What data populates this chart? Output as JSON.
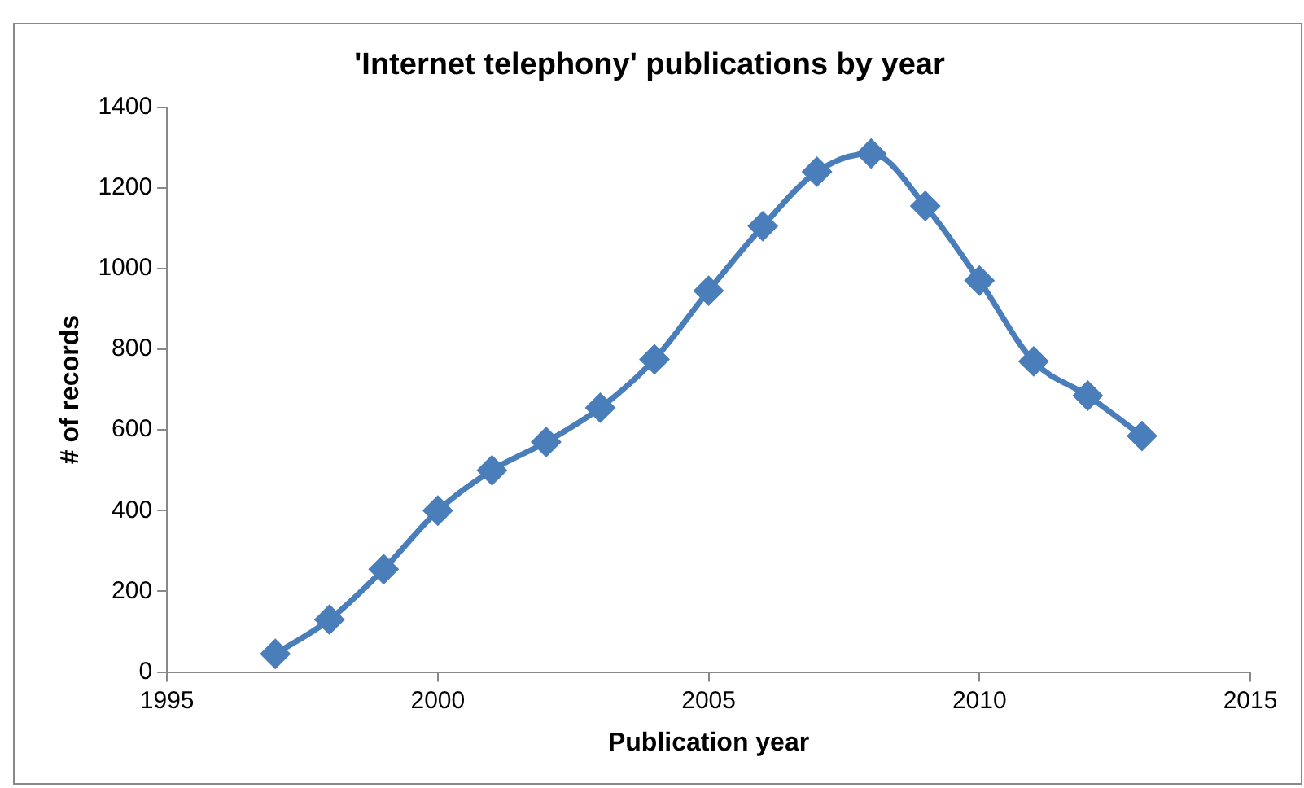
{
  "chart_data": {
    "type": "line",
    "title": "'Internet telephony' publications by year",
    "xlabel": "Publication year",
    "ylabel": "# of records",
    "x": [
      1997,
      1998,
      1999,
      2000,
      2001,
      2002,
      2003,
      2004,
      2005,
      2006,
      2007,
      2008,
      2009,
      2010,
      2011,
      2012,
      2013
    ],
    "series": [
      {
        "color": "#4a7ebb",
        "values": [
          45,
          130,
          255,
          400,
          500,
          570,
          655,
          775,
          945,
          1105,
          1240,
          1285,
          1155,
          970,
          770,
          685,
          585
        ]
      }
    ],
    "xlim": [
      1995,
      2015
    ],
    "xticks": [
      1995,
      2000,
      2005,
      2010,
      2015
    ],
    "ylim": [
      0,
      1400
    ],
    "yticks": [
      0,
      200,
      400,
      600,
      800,
      1000,
      1200,
      1400
    ],
    "grid": false,
    "legend": false,
    "marker": "diamond",
    "line_style": "solid"
  }
}
